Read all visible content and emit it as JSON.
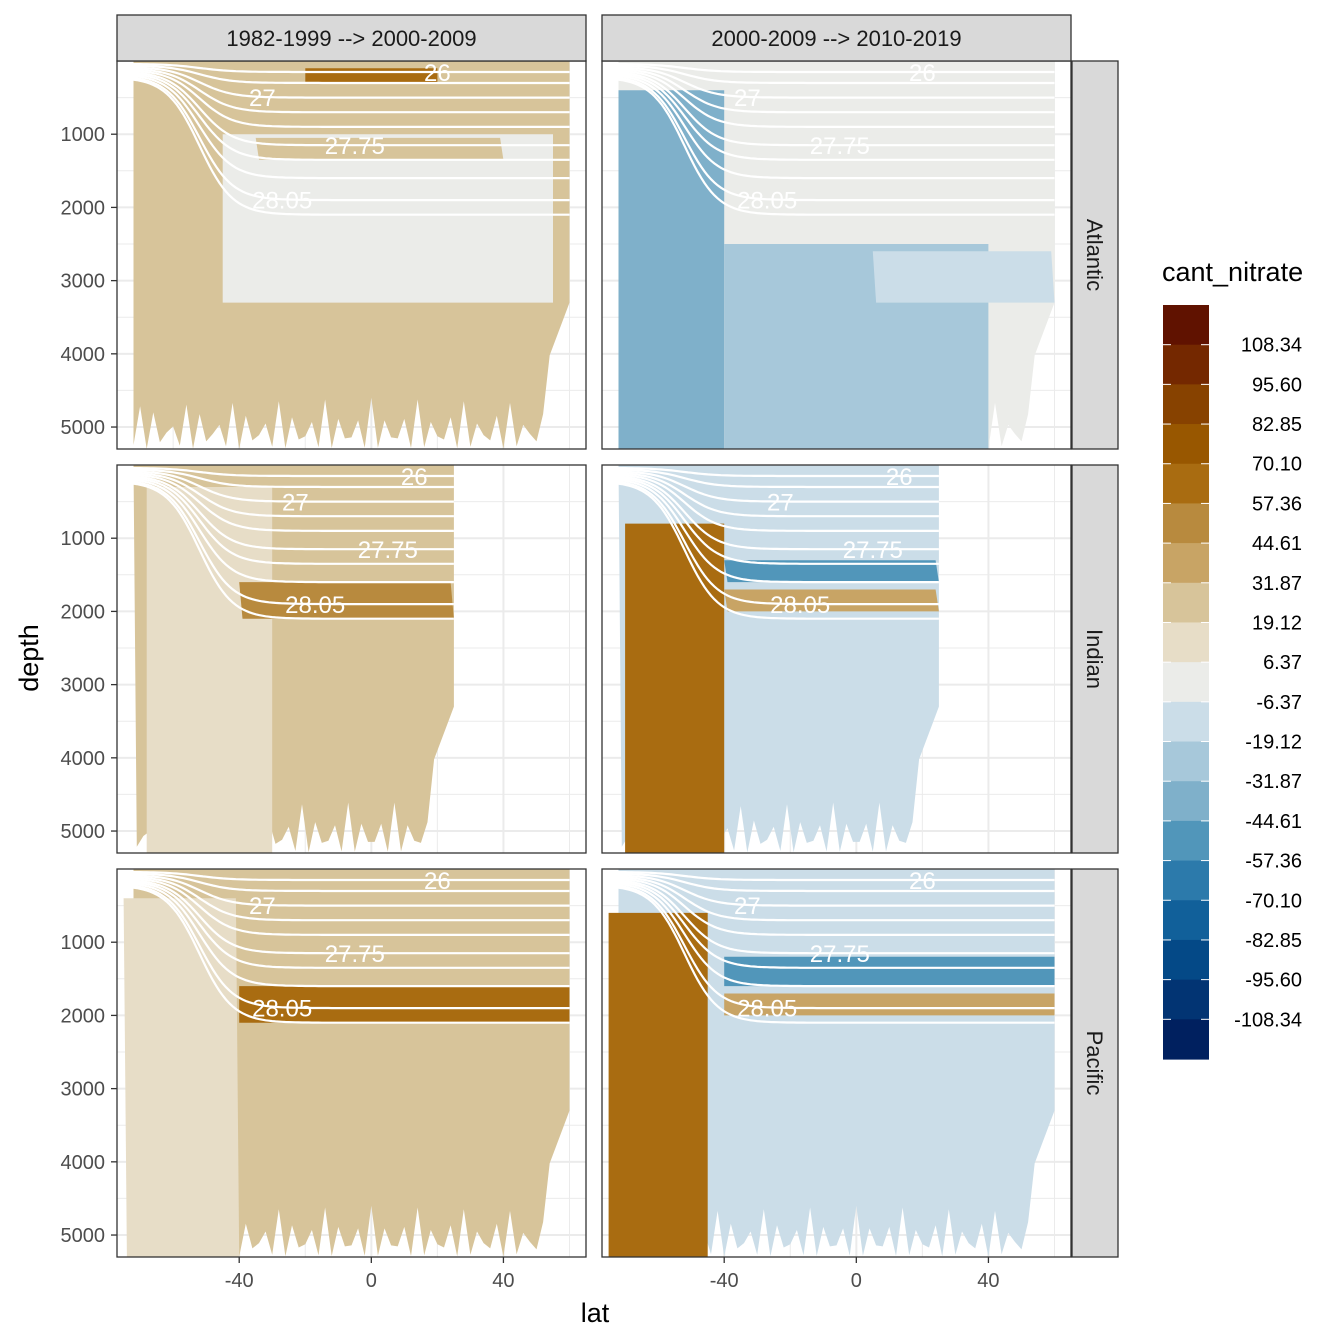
{
  "chart_data": {
    "type": "heatmap",
    "subtype": "faceted filled-contour section",
    "xlabel": "lat",
    "ylabel": "depth",
    "xlim": [
      -77,
      65
    ],
    "ylim": [
      5300,
      0
    ],
    "x_ticks": [
      -40,
      0,
      40
    ],
    "y_ticks": [
      1000,
      2000,
      3000,
      4000,
      5000
    ],
    "facet_cols": [
      "1982-1999 --> 2000-2009",
      "2000-2009 --> 2010-2019"
    ],
    "facet_rows": [
      "Atlantic",
      "Indian",
      "Pacific"
    ],
    "legend": {
      "title": "cant_nitrate",
      "labels": [
        "108.34",
        "95.60",
        "82.85",
        "70.10",
        "57.36",
        "44.61",
        "31.87",
        "19.12",
        "6.37",
        "-6.37",
        "-19.12",
        "-31.87",
        "-44.61",
        "-57.36",
        "-70.10",
        "-82.85",
        "-95.60",
        "-108.34"
      ],
      "colors": [
        "#601200",
        "#742800",
        "#874200",
        "#985700",
        "#a96c11",
        "#b88a3e",
        "#c8a465",
        "#d7c49a",
        "#e7ddc7",
        "#ebece9",
        "#cbdde8",
        "#a7c8da",
        "#7fb0ca",
        "#5196ba",
        "#2c7aab",
        "#11609a",
        "#044987",
        "#023473",
        "#00205f"
      ]
    },
    "isopycnal_labels": [
      "26",
      "27",
      "27.75",
      "28.05"
    ],
    "panels": [
      {
        "row": "Atlantic",
        "col": 0,
        "background": 7,
        "max_lat_data": 60,
        "regions": [
          {
            "depth_top": 1000,
            "depth_bottom": 3300,
            "lat_from": -45,
            "lat_to": 55,
            "class": 9
          },
          {
            "depth_top": 100,
            "depth_bottom": 300,
            "lat_from": -20,
            "lat_to": 20,
            "class": 4
          },
          {
            "depth_top": 1050,
            "depth_bottom": 1350,
            "lat_from": -35,
            "lat_to": 40,
            "class": 7
          }
        ]
      },
      {
        "row": "Atlantic",
        "col": 1,
        "background": 9,
        "max_lat_data": 60,
        "regions": [
          {
            "depth_top": 400,
            "depth_bottom": 5300,
            "lat_from": -72,
            "lat_to": -40,
            "class": 12
          },
          {
            "depth_top": 2500,
            "depth_bottom": 5300,
            "lat_from": -40,
            "lat_to": 40,
            "class": 11
          },
          {
            "depth_top": 2600,
            "depth_bottom": 3300,
            "lat_from": 5,
            "lat_to": 60,
            "class": 10
          }
        ]
      },
      {
        "row": "Indian",
        "col": 0,
        "background": 7,
        "max_lat_data": 25,
        "regions": [
          {
            "depth_top": 300,
            "depth_bottom": 5300,
            "lat_from": -68,
            "lat_to": -30,
            "class": 8
          },
          {
            "depth_top": 1600,
            "depth_bottom": 2100,
            "lat_from": -40,
            "lat_to": 25,
            "class": 5
          }
        ]
      },
      {
        "row": "Indian",
        "col": 1,
        "background": 10,
        "max_lat_data": 25,
        "regions": [
          {
            "depth_top": 800,
            "depth_bottom": 5300,
            "lat_from": -70,
            "lat_to": -40,
            "class": 4
          },
          {
            "depth_top": 1300,
            "depth_bottom": 1600,
            "lat_from": -40,
            "lat_to": 25,
            "class": 13
          },
          {
            "depth_top": 1700,
            "depth_bottom": 2000,
            "lat_from": -40,
            "lat_to": 25,
            "class": 6
          }
        ]
      },
      {
        "row": "Pacific",
        "col": 0,
        "background": 7,
        "max_lat_data": 60,
        "regions": [
          {
            "depth_top": 1600,
            "depth_bottom": 2100,
            "lat_from": -40,
            "lat_to": 60,
            "class": 4
          },
          {
            "depth_top": 400,
            "depth_bottom": 5300,
            "lat_from": -75,
            "lat_to": -40,
            "class": 8
          }
        ]
      },
      {
        "row": "Pacific",
        "col": 1,
        "background": 10,
        "max_lat_data": 60,
        "regions": [
          {
            "depth_top": 600,
            "depth_bottom": 5300,
            "lat_from": -75,
            "lat_to": -45,
            "class": 4
          },
          {
            "depth_top": 1200,
            "depth_bottom": 1600,
            "lat_from": -40,
            "lat_to": 60,
            "class": 13
          },
          {
            "depth_top": 1700,
            "depth_bottom": 2000,
            "lat_from": -40,
            "lat_to": 60,
            "class": 6
          }
        ]
      }
    ]
  }
}
